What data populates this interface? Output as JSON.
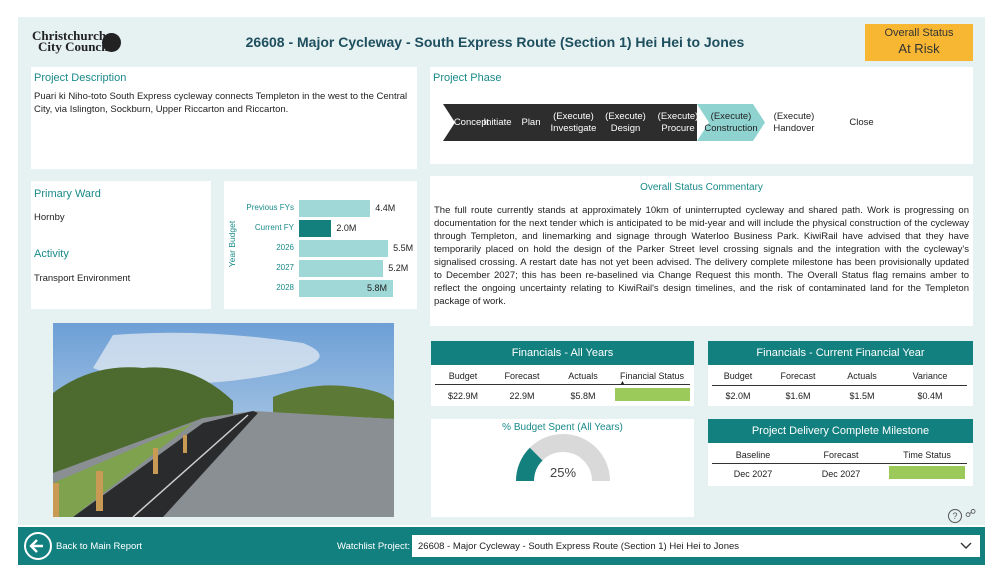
{
  "header": {
    "logo_line1": "Christchurch",
    "logo_line2": "City Council",
    "title": "26608 - Major Cycleway - South Express Route (Section 1) Hei Hei to Jones",
    "status_label": "Overall Status",
    "status_value": "At Risk",
    "status_color": "#f7b733"
  },
  "description": {
    "label": "Project Description",
    "text": "Puari ki Niho-toto South Express cycleway connects Templeton in the west to the Central City, via Islington, Sockburn, Upper Riccarton and Riccarton."
  },
  "phase": {
    "label": "Project Phase",
    "steps": [
      "Concept",
      "Initiate",
      "Plan",
      "(Execute)\nInvestigate",
      "(Execute)\nDesign",
      "(Execute)\nProcure",
      "(Execute)\nConstruction",
      "(Execute)\nHandover",
      "Close"
    ],
    "current_index": 6
  },
  "ward": {
    "label": "Primary Ward",
    "value": "Hornby",
    "activity_label": "Activity",
    "activity_value": "Transport Environment"
  },
  "budget": {
    "axis_label": "Year Budget",
    "rows": [
      {
        "label": "Previous FYs",
        "value": 4.4,
        "display": "4.4M",
        "dark": false
      },
      {
        "label": "Current FY",
        "value": 2.0,
        "display": "2.0M",
        "dark": true
      },
      {
        "label": "2026",
        "value": 5.5,
        "display": "5.5M",
        "dark": false
      },
      {
        "label": "2027",
        "value": 5.2,
        "display": "5.2M",
        "dark": false
      },
      {
        "label": "2028",
        "value": 5.8,
        "display": "5.8M",
        "dark": false
      }
    ],
    "max": 5.8
  },
  "commentary": {
    "title": "Overall Status Commentary",
    "text": "The full route currently stands at approximately 10km of uninterrupted cycleway and shared path. Work is progressing on documentation for the next tender which is anticipated to be mid-year and will include the physical construction of the cycleway through Templeton, and linemarking and signage through Waterloo Business Park. KiwiRail have advised that they have temporarily placed on hold the design of the Parker Street level crossing signals and the integration with the cycleway's signalised crossing. A restart date has not yet been advised. The delivery complete milestone has been provisionally updated to December 2027; this has been re-baselined via Change Request this month. The Overall Status flag remains amber to reflect the ongoing uncertainty relating to KiwiRail's design timelines, and the risk of contaminated land for the Templeton package of work."
  },
  "fin_all": {
    "title": "Financials - All Years",
    "headers": [
      "Budget",
      "Forecast",
      "Actuals",
      "Financial Status"
    ],
    "values": [
      "$22.9M",
      "22.9M",
      "$5.8M"
    ],
    "status_color": "#9bc95a"
  },
  "fin_current": {
    "title": "Financials - Current Financial Year",
    "headers": [
      "Budget",
      "Forecast",
      "Actuals",
      "Variance"
    ],
    "values": [
      "$2.0M",
      "$1.6M",
      "$1.5M",
      "$0.4M"
    ]
  },
  "budget_spent": {
    "title": "% Budget Spent (All Years)",
    "value_label": "25%",
    "fraction": 0.25
  },
  "milestone": {
    "title": "Project Delivery Complete Milestone",
    "headers": [
      "Baseline",
      "Forecast",
      "Time Status"
    ],
    "values": [
      "Dec 2027",
      "Dec 2027"
    ],
    "status_color": "#9bc95a"
  },
  "footer": {
    "back_label": "Back to Main Report",
    "watchlist_label": "Watchlist Project:",
    "watchlist_value": "26608 - Major Cycleway - South Express Route (Section 1) Hei Hei to Jones"
  }
}
